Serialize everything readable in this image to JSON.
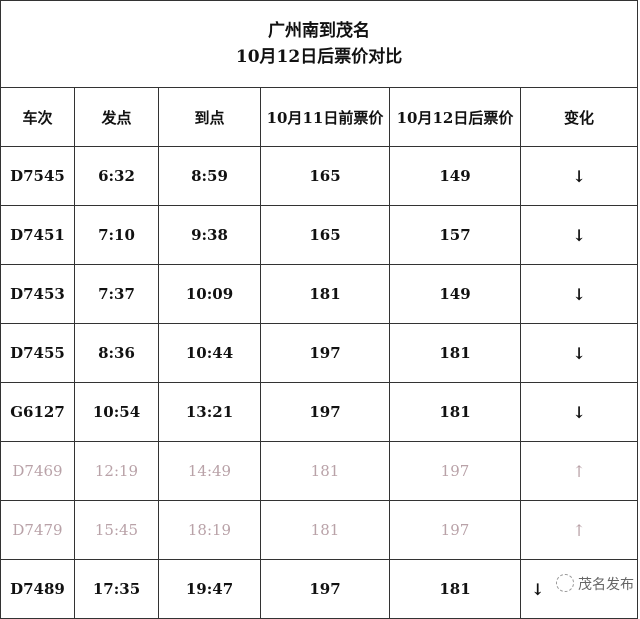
{
  "title": {
    "line1": "广州南到茂名",
    "line2": "10月12日后票价对比"
  },
  "headers": [
    "车次",
    "发点",
    "到点",
    "10月11日前票价",
    "10月12日后票价",
    "变化"
  ],
  "colors": {
    "decrease_text": "#111111",
    "increase_text": "#b9a2a8",
    "border": "#333333"
  },
  "rows": [
    {
      "train": "D7545",
      "depart": "6:32",
      "arrive": "8:59",
      "old_price": "165",
      "new_price": "149",
      "change": "↓",
      "direction": "down"
    },
    {
      "train": "D7451",
      "depart": "7:10",
      "arrive": "9:38",
      "old_price": "165",
      "new_price": "157",
      "change": "↓",
      "direction": "down"
    },
    {
      "train": "D7453",
      "depart": "7:37",
      "arrive": "10:09",
      "old_price": "181",
      "new_price": "149",
      "change": "↓",
      "direction": "down"
    },
    {
      "train": "D7455",
      "depart": "8:36",
      "arrive": "10:44",
      "old_price": "197",
      "new_price": "181",
      "change": "↓",
      "direction": "down"
    },
    {
      "train": "G6127",
      "depart": "10:54",
      "arrive": "13:21",
      "old_price": "197",
      "new_price": "181",
      "change": "↓",
      "direction": "down"
    },
    {
      "train": "D7469",
      "depart": "12:19",
      "arrive": "14:49",
      "old_price": "181",
      "new_price": "197",
      "change": "↑",
      "direction": "up"
    },
    {
      "train": "D7479",
      "depart": "15:45",
      "arrive": "18:19",
      "old_price": "181",
      "new_price": "197",
      "change": "↑",
      "direction": "up"
    },
    {
      "train": "D7489",
      "depart": "17:35",
      "arrive": "19:47",
      "old_price": "197",
      "new_price": "181",
      "change": "↓",
      "direction": "down"
    }
  ],
  "watermark": "茂名发布"
}
